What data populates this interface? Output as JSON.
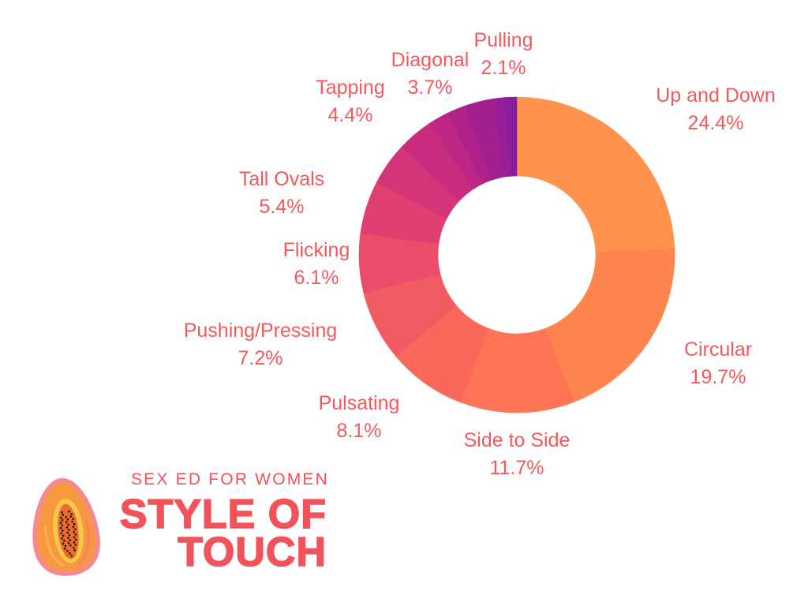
{
  "brand": {
    "subtitle": "SEX ED FOR WOMEN",
    "title_line1": "STYLE OF",
    "title_line2": "TOUCH",
    "color": "#F2525A"
  },
  "logo_icon": "papaya-icon",
  "chart_data": {
    "type": "pie",
    "variant": "donut",
    "start": "top",
    "direction": "clockwise",
    "labels": "outside",
    "legend": "none",
    "label_color": "#F45A5C",
    "slices": [
      {
        "label": "Up and Down",
        "value": 24.4,
        "value_label": "24.4%",
        "color": "#FF924C"
      },
      {
        "label": "Circular",
        "value": 19.7,
        "value_label": "19.7%",
        "color": "#FF8450"
      },
      {
        "label": "Side to Side",
        "value": 11.7,
        "value_label": "11.7%",
        "color": "#FD7555"
      },
      {
        "label": "Pulsating",
        "value": 8.1,
        "value_label": "8.1%",
        "color": "#F9685B"
      },
      {
        "label": "Pushing/Pressing",
        "value": 7.2,
        "value_label": "7.2%",
        "color": "#F25A62"
      },
      {
        "label": "Flicking",
        "value": 6.1,
        "value_label": "6.1%",
        "color": "#E94D69"
      },
      {
        "label": "Tall Ovals",
        "value": 5.4,
        "value_label": "5.4%",
        "color": "#DF4070"
      },
      {
        "label": "Tapping",
        "value": 4.4,
        "value_label": "4.4%",
        "color": "#D33578"
      },
      {
        "label": "Diagonal",
        "value": 3.7,
        "value_label": "3.7%",
        "color": "#C72C7F"
      },
      {
        "label": "Pulling",
        "value": 2.1,
        "value_label": "2.1%",
        "color": "#BC2685"
      },
      {
        "label": "",
        "value": 1.9,
        "color": "#B02289"
      },
      {
        "label": "",
        "value": 2.9,
        "color": "#A31F90"
      },
      {
        "label": "",
        "value": 1.2,
        "color": "#961E96"
      },
      {
        "label": "",
        "value": 1.2,
        "color": "#891E9C"
      }
    ]
  }
}
